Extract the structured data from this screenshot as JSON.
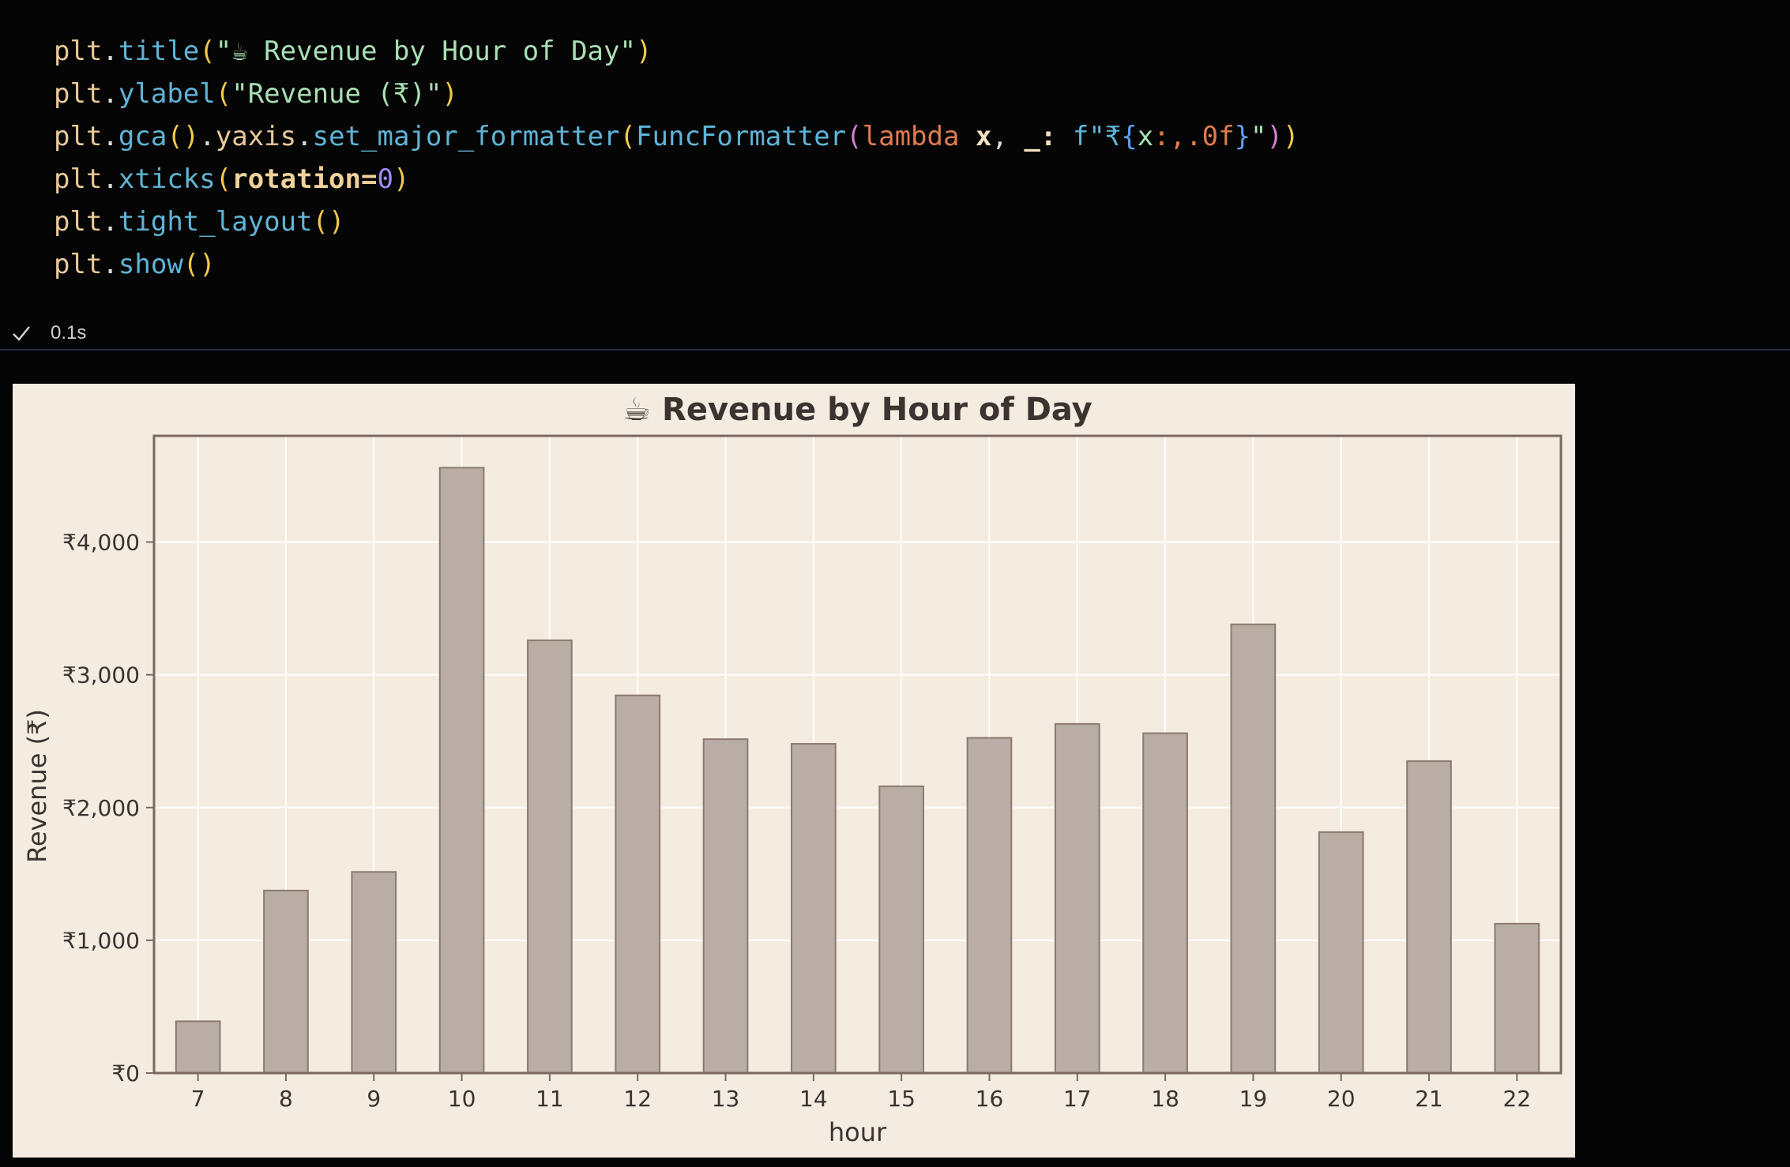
{
  "code": {
    "line1": {
      "obj": "plt",
      "fn": "title",
      "arg": "\"☕ Revenue by Hour of Day\""
    },
    "line2": {
      "obj": "plt",
      "fn": "ylabel",
      "arg": "\"Revenue (₹)\""
    },
    "line3": {
      "obj": "plt",
      "fn1": "gca",
      "attr": "yaxis",
      "fn2": "set_major_formatter",
      "cls": "FuncFormatter",
      "kw": "lambda",
      "var1": "x",
      "var2": "_",
      "fprefix": "f\"₹",
      "fvar": "x",
      "fspec": ":,.0f",
      "fend": "\""
    },
    "line4": {
      "obj": "plt",
      "fn": "xticks",
      "kwarg": "rotation",
      "val": "0"
    },
    "line5": {
      "obj": "plt",
      "fn": "tight_layout"
    },
    "line6": {
      "obj": "plt",
      "fn": "show"
    }
  },
  "status": {
    "duration": "0.1s"
  },
  "colors": {
    "background": "#050505",
    "plot_background": "#f4ebe1",
    "bar_fill": "#baada6",
    "bar_edge": "#8a7a70",
    "grid": "#ffffff",
    "text": "#3a3330"
  },
  "chart_data": {
    "type": "bar",
    "title": "☕ Revenue by Hour of Day",
    "xlabel": "hour",
    "ylabel": "Revenue (₹)",
    "categories": [
      "7",
      "8",
      "9",
      "10",
      "11",
      "12",
      "13",
      "14",
      "15",
      "16",
      "17",
      "18",
      "19",
      "20",
      "21",
      "22"
    ],
    "values": [
      390,
      1375,
      1515,
      4560,
      3260,
      2845,
      2515,
      2480,
      2160,
      2525,
      2630,
      2560,
      3380,
      1815,
      2350,
      1125
    ],
    "ylim": [
      0,
      4800
    ],
    "yticks": [
      0,
      1000,
      2000,
      3000,
      4000
    ],
    "ytick_labels": [
      "₹0",
      "₹1,000",
      "₹2,000",
      "₹3,000",
      "₹4,000"
    ],
    "grid": true
  }
}
